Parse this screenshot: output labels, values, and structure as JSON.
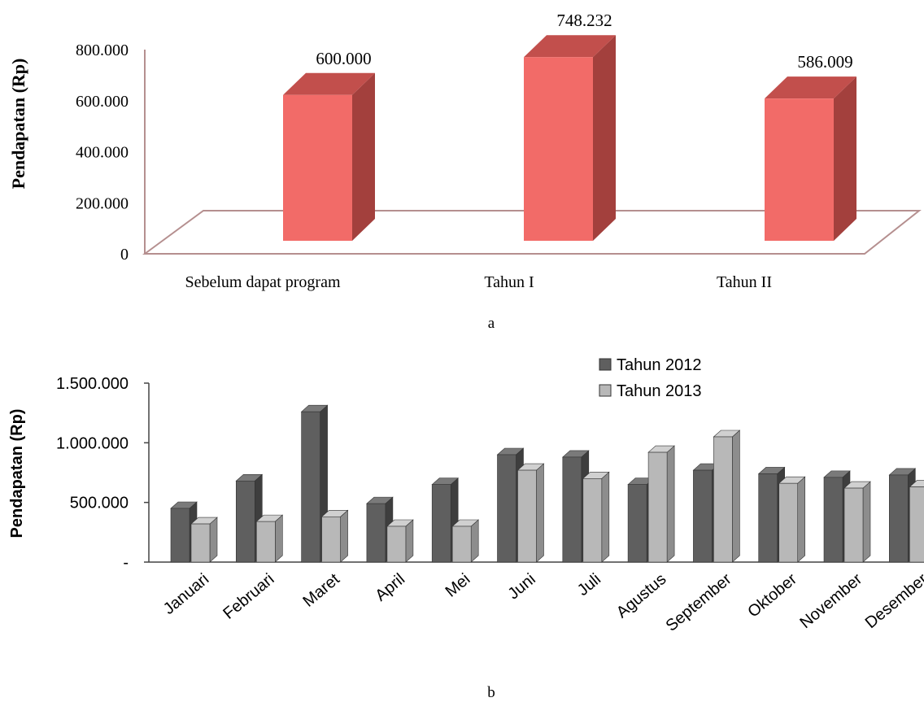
{
  "chart_data": [
    {
      "type": "bar",
      "title": "",
      "caption": "a",
      "ylabel": "Pendapatan (Rp)",
      "xlabel": "",
      "ylim": [
        0,
        800000
      ],
      "yticks": [
        "0",
        "200.000",
        "400.000",
        "600.000",
        "800.000"
      ],
      "categories": [
        "Sebelum dapat program",
        "Tahun I",
        "Tahun II"
      ],
      "values": [
        600000,
        748232,
        586009
      ],
      "data_labels": [
        "600.000",
        "748.232",
        "586.009"
      ],
      "grid": false,
      "style": "3d-column",
      "colors": {
        "face": "#f26b68",
        "top": "#c24f4c",
        "side": "#a3403d"
      }
    },
    {
      "type": "bar",
      "title": "",
      "caption": "b",
      "ylabel": "Pendapatan (Rp)",
      "xlabel": "",
      "ylim": [
        0,
        1500000
      ],
      "yticks": [
        "-",
        "500.000",
        "1.000.000",
        "1.500.000"
      ],
      "categories": [
        "Januari",
        "Februari",
        "Maret",
        "April",
        "Mei",
        "Juni",
        "Juli",
        "Agustus",
        "September",
        "Oktober",
        "November",
        "Desember"
      ],
      "series": [
        {
          "name": "Tahun 2012",
          "values": [
            450000,
            680000,
            1260000,
            490000,
            650000,
            900000,
            880000,
            650000,
            770000,
            740000,
            710000,
            730000
          ]
        },
        {
          "name": "Tahun 2013",
          "values": [
            320000,
            340000,
            380000,
            300000,
            300000,
            770000,
            700000,
            920000,
            1050000,
            660000,
            620000,
            630000
          ]
        }
      ],
      "legend_position": "top-right",
      "grid": false,
      "style": "3d-column",
      "colors": {
        "series_0": "#5f5f5f",
        "series_1": "#b8b8b8"
      }
    }
  ]
}
